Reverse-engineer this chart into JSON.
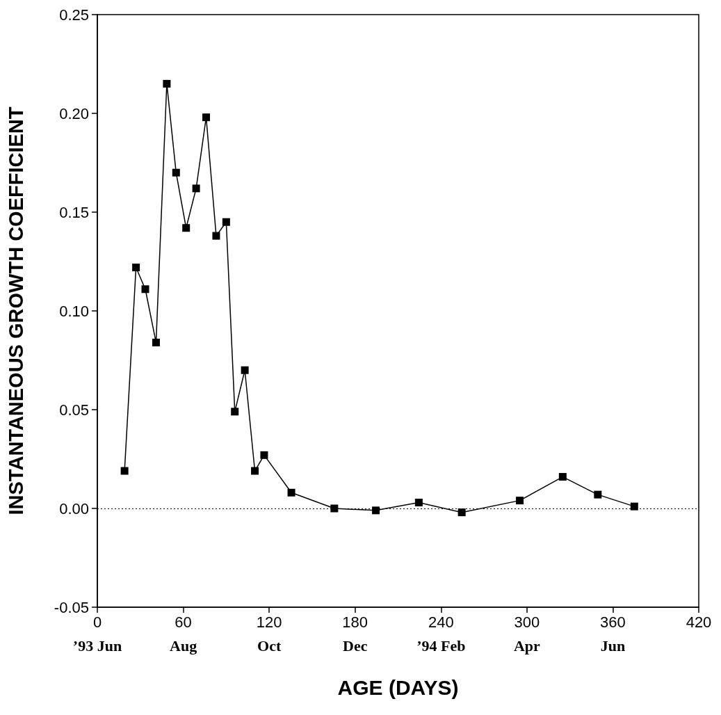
{
  "chart_data": {
    "type": "line",
    "xlabel": "AGE (DAYS)",
    "ylabel": "INSTANTANEOUS GROWTH COEFFICIENT",
    "x": [
      19,
      27,
      33.5,
      41,
      48.5,
      55,
      62,
      69,
      76,
      83,
      90,
      96,
      103,
      110,
      116.5,
      135.5,
      165.5,
      194.5,
      224.5,
      254.5,
      295,
      325,
      349.5,
      375
    ],
    "series": [
      {
        "color": "#000000",
        "values": [
          0.019,
          0.122,
          0.111,
          0.084,
          0.215,
          0.17,
          0.142,
          0.162,
          0.198,
          0.138,
          0.145,
          0.049,
          0.07,
          0.019,
          0.027,
          0.008,
          0.0,
          -0.001,
          0.003,
          -0.002,
          0.004,
          0.016,
          0.007,
          0.001
        ]
      }
    ],
    "xlim": [
      0,
      420
    ],
    "xticks": [
      0,
      60,
      120,
      180,
      240,
      300,
      360,
      420
    ],
    "annotations": [
      "’93 Jun",
      "Aug",
      "Oct",
      "Dec",
      "’94 Feb",
      "Apr",
      "Jun"
    ],
    "ylim": [
      -0.05,
      0.25
    ],
    "yticks": [
      {
        "value": -0.05,
        "label": "-0.05"
      },
      {
        "value": 0,
        "label": "0.00"
      },
      {
        "value": 0.05,
        "label": "0.05"
      },
      {
        "value": 0.1,
        "label": "0.10"
      },
      {
        "value": 0.15,
        "label": "0.15"
      },
      {
        "value": 0.2,
        "label": "0.20"
      },
      {
        "value": 0.25,
        "label": "0.25"
      }
    ],
    "ref_lines": [
      {
        "axis": "y",
        "value": 0,
        "line_style": "dotted"
      }
    ],
    "marker": "square",
    "line_style": "solid",
    "grid": false
  }
}
